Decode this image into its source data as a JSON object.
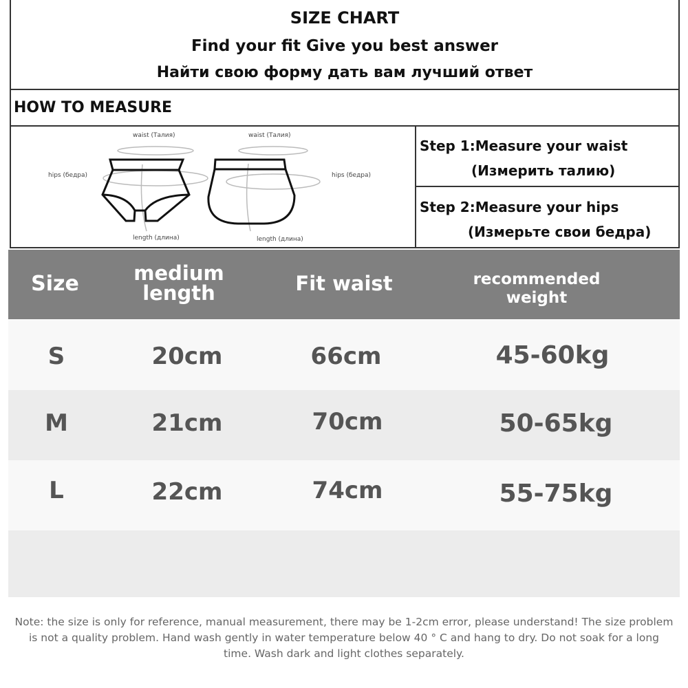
{
  "header": {
    "title": "SIZE CHART",
    "subtitle": "Find your fit Give you best answer",
    "subtitle_ru": "Найти свою форму дать вам лучший ответ"
  },
  "measure": {
    "heading": "HOW TO MEASURE",
    "diagram_labels": {
      "waist": "waist (Талия)",
      "hips": "hips (бедра)",
      "length": "length (длина)"
    },
    "steps": [
      {
        "text": "Step 1:Measure your waist",
        "text_ru": "(Измерить талию)"
      },
      {
        "text": "Step 2:Measure your hips",
        "text_ru": "(Измерьте свои бедра)"
      }
    ]
  },
  "table": {
    "header_color": "#808080",
    "columns": [
      "Size",
      "medium length",
      "Fit waist",
      "recommended weight"
    ],
    "rows": [
      [
        "S",
        "20cm",
        "66cm",
        "45-60kg"
      ],
      [
        "M",
        "21cm",
        "70cm",
        "50-65kg"
      ],
      [
        "L",
        "22cm",
        "74cm",
        "55-75kg"
      ]
    ]
  },
  "note": "Note: the size is only for reference, manual measurement, there may be 1-2cm error, please understand! The size problem is not a quality problem. Hand wash gently in water temperature below 40 ° C and hang to dry. Do not soak for a long time. Wash dark and light clothes separately."
}
